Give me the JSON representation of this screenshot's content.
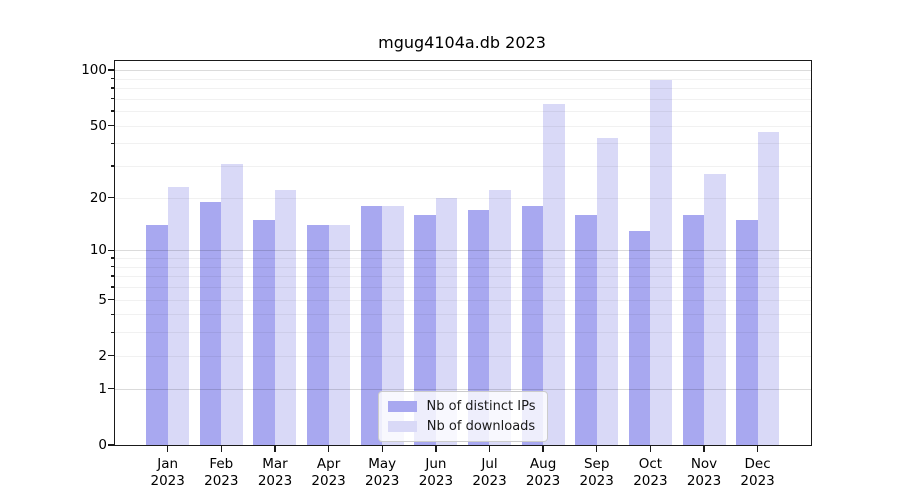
{
  "title": "mgug4104a.db 2023",
  "chart_data": {
    "type": "bar",
    "title": "mgug4104a.db 2023",
    "categories": [
      "Jan",
      "Feb",
      "Mar",
      "Apr",
      "May",
      "Jun",
      "Jul",
      "Aug",
      "Sep",
      "Oct",
      "Nov",
      "Dec"
    ],
    "x_year_line": "2023",
    "series": [
      {
        "name": "Nb of distinct IPs",
        "color": "#a8a8f0",
        "values": [
          14,
          19,
          15,
          14,
          18,
          16,
          17,
          18,
          16,
          13,
          16,
          15
        ]
      },
      {
        "name": "Nb of downloads",
        "color": "#d9d9f7",
        "values": [
          23,
          31,
          22,
          14,
          18,
          20,
          22,
          66,
          43,
          89,
          27,
          46
        ]
      }
    ],
    "yscale": "log10(1+x)",
    "yticks": [
      0,
      1,
      2,
      5,
      10,
      20,
      50,
      100
    ],
    "major_grid_values": [
      1,
      10,
      100
    ],
    "ylim": [
      0,
      112
    ],
    "grid": true,
    "legend_position": "lower center",
    "xlabel": "",
    "ylabel": ""
  }
}
